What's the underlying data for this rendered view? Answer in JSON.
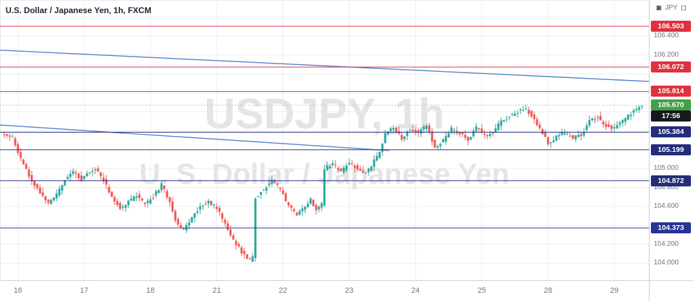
{
  "header": {
    "title": "U.S. Dollar / Japanese Yen, 1h, FXCM"
  },
  "watermark": {
    "line1": "USDJPY, 1h",
    "line2": "U. S. Dollar / Japanese Yen"
  },
  "price_axis": {
    "currency": "JPY",
    "ticks": [
      "106.400",
      "106.200",
      "105.000",
      "104.800",
      "104.600",
      "104.200",
      "104.000"
    ],
    "levels": [
      {
        "value": "106.503",
        "price": 106.503,
        "kind": "resistance",
        "color": "#e0313f"
      },
      {
        "value": "106.072",
        "price": 106.072,
        "kind": "resistance",
        "color": "#e0313f"
      },
      {
        "value": "105.814",
        "price": 105.814,
        "kind": "resistance",
        "color": "#e0313f"
      },
      {
        "value": "105.384",
        "price": 105.384,
        "kind": "support",
        "color": "#232d7a"
      },
      {
        "value": "105.199",
        "price": 105.199,
        "kind": "support",
        "color": "#232d7a"
      },
      {
        "value": "104.872",
        "price": 104.872,
        "kind": "support",
        "color": "#232d7a"
      },
      {
        "value": "104.373",
        "price": 104.373,
        "kind": "support",
        "color": "#283593"
      }
    ],
    "current": {
      "value": "105.670",
      "price": 105.67,
      "countdown": "17:56",
      "color": "#43a047",
      "countdown_bg": "#17181b"
    }
  },
  "time_axis": {
    "labels": [
      {
        "text": "16",
        "i": 5
      },
      {
        "text": "17",
        "i": 29
      },
      {
        "text": "18",
        "i": 53
      },
      {
        "text": "21",
        "i": 77
      },
      {
        "text": "22",
        "i": 101
      },
      {
        "text": "23",
        "i": 125
      },
      {
        "text": "24",
        "i": 149
      },
      {
        "text": "25",
        "i": 173
      },
      {
        "text": "28",
        "i": 197
      },
      {
        "text": "29",
        "i": 221
      }
    ]
  },
  "chart_data": {
    "type": "candlestick",
    "symbol": "USDJPY",
    "interval": "1h",
    "exchange": "FXCM",
    "title": "U.S. Dollar / Japanese Yen, 1h, FXCM",
    "y_range": [
      103.82,
      106.78
    ],
    "y_gridstep": 0.2,
    "x_labels": [
      "16",
      "17",
      "18",
      "21",
      "22",
      "23",
      "24",
      "25",
      "28",
      "29"
    ],
    "horizontal_levels": {
      "resistance": [
        106.503,
        106.072,
        105.814
      ],
      "support": [
        105.384,
        105.199,
        104.872,
        104.373
      ]
    },
    "last_price": 105.67,
    "countdown": "17:56",
    "trendlines": [
      {
        "from": {
          "t": 0.0,
          "price": 106.25
        },
        "to": {
          "t": 1.0,
          "price": 105.92
        },
        "color": "#4f81c7"
      },
      {
        "from": {
          "t": 0.0,
          "price": 105.46
        },
        "to": {
          "t": 0.6,
          "price": 105.19
        },
        "color": "#4f81c7"
      }
    ],
    "candle_count": 232,
    "price_path_anchors": [
      [
        0,
        105.36
      ],
      [
        4,
        105.33
      ],
      [
        7,
        105.1
      ],
      [
        10,
        104.92
      ],
      [
        14,
        104.75
      ],
      [
        17,
        104.63
      ],
      [
        20,
        104.72
      ],
      [
        23,
        104.88
      ],
      [
        26,
        104.97
      ],
      [
        29,
        104.88
      ],
      [
        31,
        104.95
      ],
      [
        34,
        105.0
      ],
      [
        37,
        104.88
      ],
      [
        40,
        104.7
      ],
      [
        43,
        104.58
      ],
      [
        46,
        104.65
      ],
      [
        49,
        104.72
      ],
      [
        52,
        104.62
      ],
      [
        55,
        104.7
      ],
      [
        58,
        104.83
      ],
      [
        61,
        104.65
      ],
      [
        63,
        104.45
      ],
      [
        66,
        104.35
      ],
      [
        69,
        104.48
      ],
      [
        72,
        104.6
      ],
      [
        75,
        104.65
      ],
      [
        78,
        104.58
      ],
      [
        81,
        104.42
      ],
      [
        84,
        104.25
      ],
      [
        87,
        104.12
      ],
      [
        90,
        104.03
      ],
      [
        91,
        104.06
      ],
      [
        92,
        104.7
      ],
      [
        95,
        104.78
      ],
      [
        98,
        104.88
      ],
      [
        101,
        104.78
      ],
      [
        104,
        104.6
      ],
      [
        107,
        104.52
      ],
      [
        110,
        104.6
      ],
      [
        112,
        104.68
      ],
      [
        114,
        104.56
      ],
      [
        116,
        104.62
      ],
      [
        117,
        105.0
      ],
      [
        120,
        105.05
      ],
      [
        123,
        104.96
      ],
      [
        126,
        105.06
      ],
      [
        129,
        105.0
      ],
      [
        132,
        104.95
      ],
      [
        135,
        105.08
      ],
      [
        137,
        105.18
      ],
      [
        139,
        105.36
      ],
      [
        142,
        105.44
      ],
      [
        145,
        105.32
      ],
      [
        148,
        105.42
      ],
      [
        151,
        105.38
      ],
      [
        154,
        105.46
      ],
      [
        157,
        105.22
      ],
      [
        160,
        105.3
      ],
      [
        163,
        105.42
      ],
      [
        166,
        105.37
      ],
      [
        169,
        105.3
      ],
      [
        172,
        105.44
      ],
      [
        175,
        105.34
      ],
      [
        178,
        105.38
      ],
      [
        181,
        105.5
      ],
      [
        184,
        105.55
      ],
      [
        187,
        105.6
      ],
      [
        190,
        105.63
      ],
      [
        193,
        105.52
      ],
      [
        196,
        105.38
      ],
      [
        198,
        105.27
      ],
      [
        201,
        105.33
      ],
      [
        204,
        105.38
      ],
      [
        207,
        105.32
      ],
      [
        210,
        105.36
      ],
      [
        213,
        105.5
      ],
      [
        216,
        105.54
      ],
      [
        219,
        105.45
      ],
      [
        222,
        105.42
      ],
      [
        225,
        105.5
      ],
      [
        228,
        105.58
      ],
      [
        230,
        105.62
      ],
      [
        232,
        105.67
      ]
    ],
    "colors": {
      "up": "#26a69a",
      "down": "#ef5350",
      "grid": "#ececf0",
      "current_line": "#9598a1"
    }
  }
}
